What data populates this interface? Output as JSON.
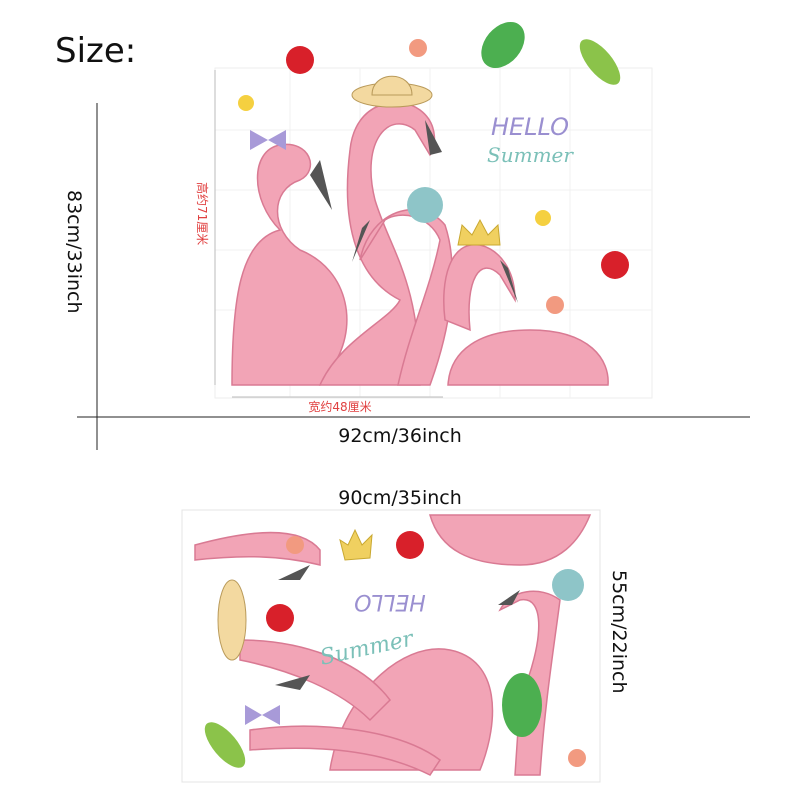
{
  "title": "Size:",
  "top_panel": {
    "height_label": "83cm/33inch",
    "width_label": "92cm/36inch",
    "inner_height_label": "高约71厘米",
    "inner_width_label": "宽约48厘米",
    "artwork_text": [
      "HELLO",
      "Summer"
    ]
  },
  "bottom_panel": {
    "width_label": "90cm/35inch",
    "height_label": "55cm/22inch",
    "artwork_text": [
      "HELLO",
      "Summer"
    ]
  }
}
